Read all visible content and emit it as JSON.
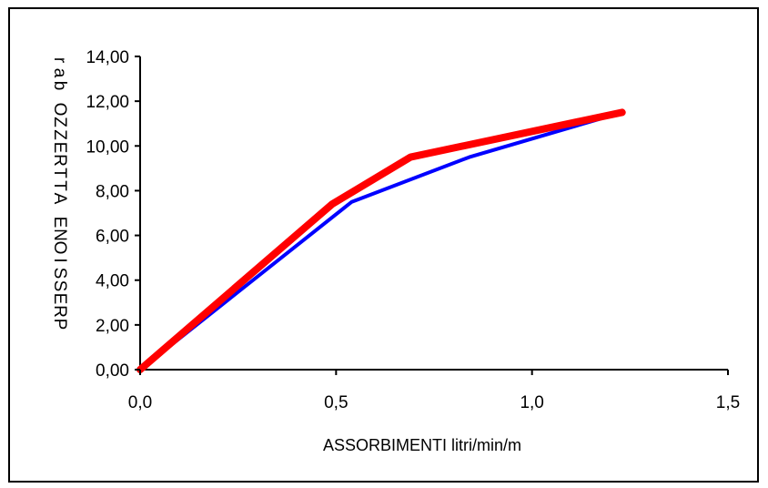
{
  "chart_data": {
    "type": "line",
    "xlabel": "ASSORBIMENTI  litri/min/m",
    "ylabel": "PRESSIONE ATTREZZO bar",
    "xlim": [
      0,
      1.5
    ],
    "ylim": [
      0,
      14
    ],
    "x_ticks": [
      "0,0",
      "0,5",
      "1,0",
      "1,5"
    ],
    "y_ticks": [
      "0,00",
      "2,00",
      "4,00",
      "6,00",
      "8,00",
      "10,00",
      "12,00",
      "14,00"
    ],
    "grid": false,
    "legend": "none",
    "series": [
      {
        "color": "#0000ff",
        "x": [
          0.0,
          0.54,
          0.84,
          1.23
        ],
        "y": [
          0.0,
          7.5,
          9.5,
          11.5
        ]
      },
      {
        "color": "#ff0000",
        "x": [
          0.0,
          0.49,
          0.69,
          1.23
        ],
        "y": [
          0.0,
          7.4,
          9.5,
          11.5
        ]
      }
    ]
  }
}
